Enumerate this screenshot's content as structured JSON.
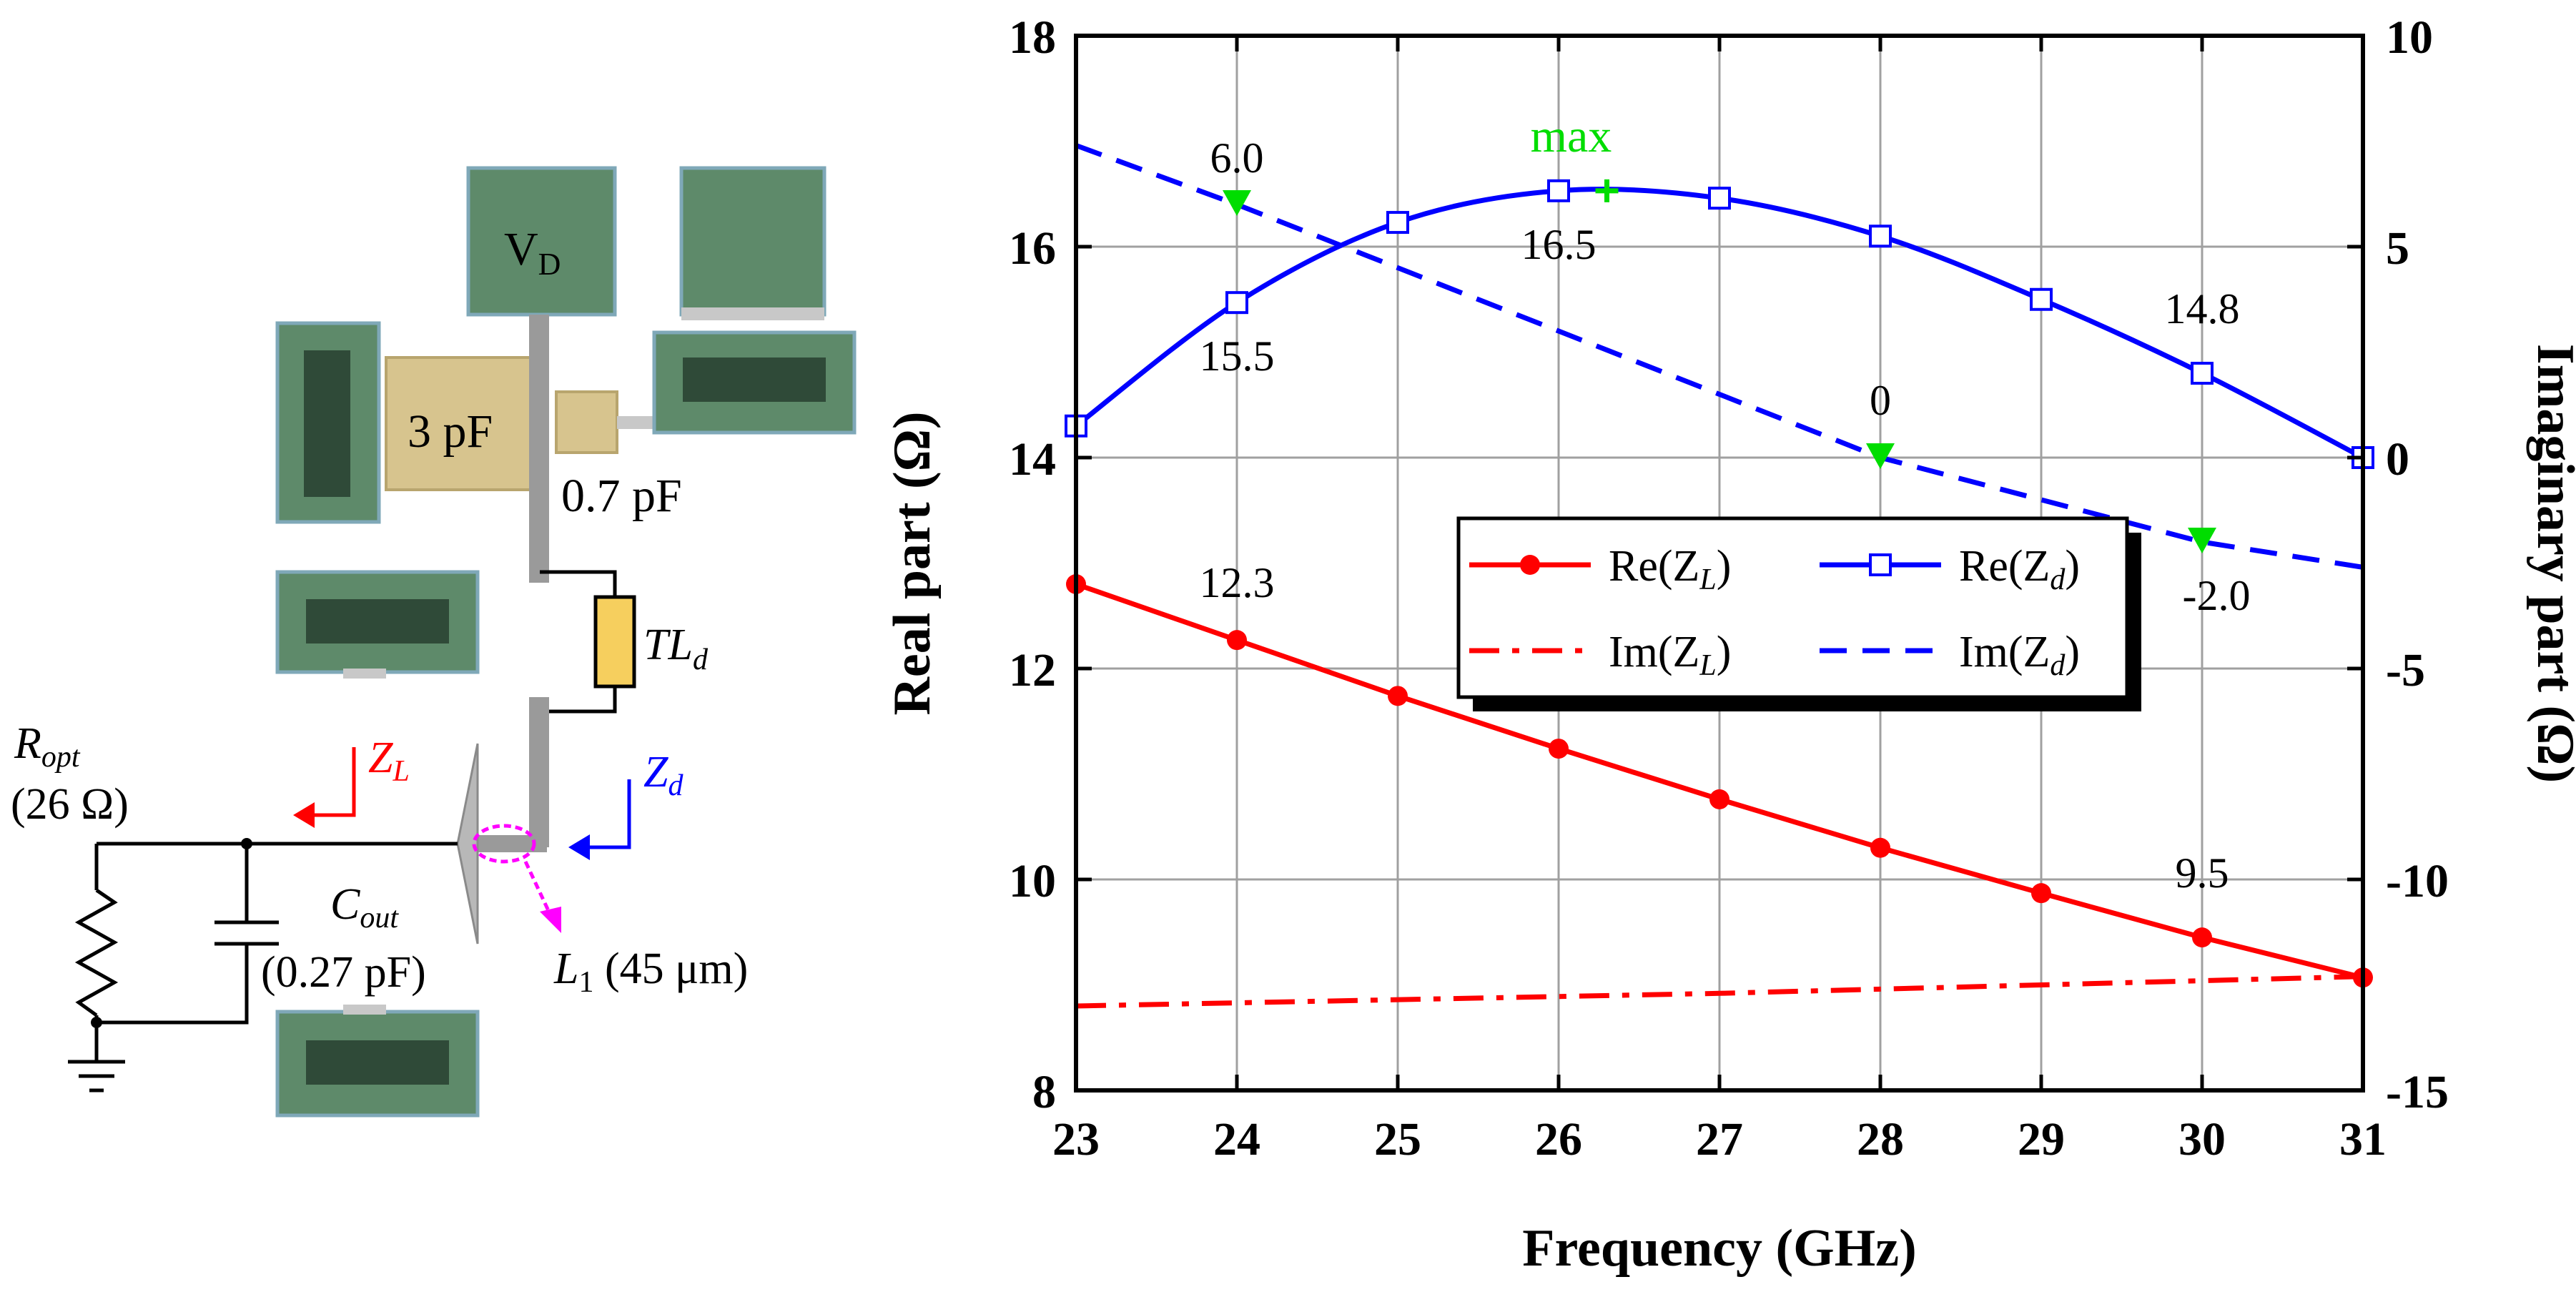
{
  "schematic": {
    "vd_label": "V",
    "vd_sub": "D",
    "cap1_label": "3 pF",
    "cap2_label": "0.7 pF",
    "tl_label": "TL",
    "tl_sub": "d",
    "ropt_label": "R",
    "ropt_sub": "opt",
    "ropt_value": "(26 Ω)",
    "zl_label": "Z",
    "zl_sub": "L",
    "zd_label": "Z",
    "zd_sub": "d",
    "cout_label": "C",
    "cout_sub": "out",
    "cout_value": "(0.27 pF)",
    "l1_label": "L",
    "l1_sub": "1",
    "l1_value": " (45 μm)",
    "colors": {
      "pad": "#5e8a6a",
      "pad_border": "#7fa8b8",
      "pad_dark": "#2f4a38",
      "cap": "#d7c48e",
      "line": "#9a9a9a",
      "tl": "#f6cf5e",
      "zl": "#ff0000",
      "zd": "#0000ff",
      "l1": "#ff00ff"
    }
  },
  "chart_data": {
    "type": "line",
    "xlabel": "Frequency (GHz)",
    "ylabel": "Real part (Ω)",
    "y2label": "Imaginary part (Ω)",
    "xlim": [
      23,
      31
    ],
    "ylim": [
      8,
      18
    ],
    "y2lim": [
      -15,
      10
    ],
    "xticks": [
      "23",
      "24",
      "25",
      "26",
      "27",
      "28",
      "29",
      "30",
      "31"
    ],
    "yticks": [
      "8",
      "10",
      "12",
      "14",
      "16",
      "18"
    ],
    "y2ticks": [
      "-15",
      "-10",
      "-5",
      "0",
      "5",
      "10"
    ],
    "grid": true,
    "legend_position": "center-right",
    "series": [
      {
        "name": "Re(Z_L)",
        "label_main": "Re(Z",
        "label_sub": "L",
        "axis": "left",
        "style": "solid",
        "marker": "circle",
        "color": "#ff0000",
        "x": [
          23,
          24,
          25,
          26,
          27,
          28,
          29,
          30,
          31
        ],
        "y": [
          12.8,
          12.27,
          11.74,
          11.24,
          10.76,
          10.3,
          9.87,
          9.45,
          9.07
        ]
      },
      {
        "name": "Re(Z_d)",
        "label_main": "Re(Z",
        "label_sub": "d",
        "axis": "left",
        "style": "solid",
        "marker": "square",
        "color": "#0000ff",
        "x": [
          23,
          24,
          25,
          26,
          27,
          28,
          29,
          30,
          31
        ],
        "y": [
          14.3,
          15.47,
          16.23,
          16.53,
          16.46,
          16.1,
          15.5,
          14.8,
          14.0
        ]
      },
      {
        "name": "Im(Z_L)",
        "label_main": "Im(Z",
        "label_sub": "L",
        "axis": "right",
        "style": "dashdot",
        "marker": "none",
        "color": "#ff0000",
        "x": [
          23,
          27,
          31
        ],
        "y": [
          -13.0,
          -12.7,
          -12.3
        ]
      },
      {
        "name": "Im(Z_d)",
        "label_main": "Im(Z",
        "label_sub": "d",
        "axis": "right",
        "style": "dash",
        "marker": "none",
        "color": "#0000ff",
        "x": [
          23,
          24,
          25,
          26,
          27,
          28,
          29,
          30,
          31
        ],
        "y": [
          7.4,
          6.0,
          4.5,
          3.0,
          1.5,
          0.0,
          -1.0,
          -2.0,
          -2.6
        ]
      }
    ],
    "markers": [
      {
        "x": 24,
        "y2": 6.0,
        "label": "6.0",
        "shape": "triangle",
        "color": "#00dd00"
      },
      {
        "x": 28,
        "y2": 0.0,
        "label": "0",
        "shape": "triangle",
        "color": "#00dd00"
      },
      {
        "x": 30,
        "y2": -2.0,
        "label": "-2.0",
        "shape": "triangle",
        "color": "#00dd00"
      },
      {
        "x": 26.3,
        "y": 16.53,
        "label": "max",
        "shape": "plus",
        "color": "#00dd00"
      }
    ],
    "annotations": [
      {
        "x": 24,
        "y": 12.27,
        "text": "12.3"
      },
      {
        "x": 24,
        "y": 15.47,
        "text": "15.5"
      },
      {
        "x": 26,
        "y": 16.53,
        "text": "16.5"
      },
      {
        "x": 30,
        "y": 14.8,
        "text": "14.8"
      },
      {
        "x": 30,
        "y": 9.45,
        "text": "9.5"
      }
    ]
  }
}
